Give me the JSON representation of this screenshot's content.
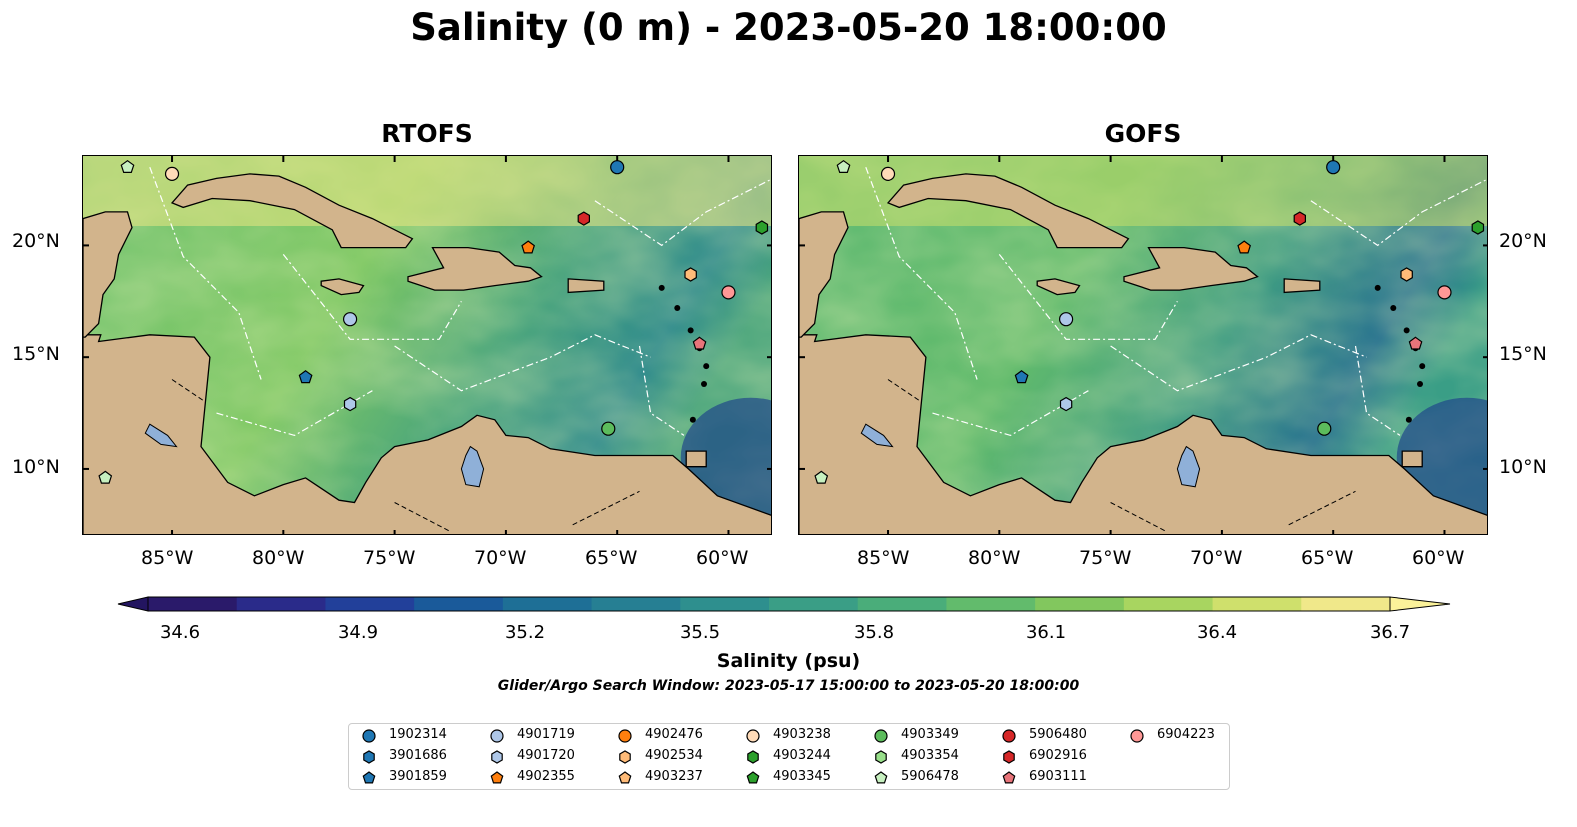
{
  "figure": {
    "title": "Salinity (0 m) - 2023-05-20 18:00:00",
    "colorbar_title": "Salinity (psu)",
    "search_window": "Glider/Argo Search Window: 2023-05-17 15:00:00 to 2023-05-20 18:00:00"
  },
  "panels": [
    {
      "title": "RTOFS"
    },
    {
      "title": "GOFS"
    }
  ],
  "axes": {
    "lon_labels": [
      "85°W",
      "80°W",
      "75°W",
      "70°W",
      "65°W",
      "60°W"
    ],
    "lat_labels": [
      "20°N",
      "15°N",
      "10°N"
    ],
    "lon_values": [
      -85,
      -80,
      -75,
      -70,
      -65,
      -60
    ],
    "lat_values": [
      20,
      15,
      10
    ],
    "lon_range": [
      -89,
      -58
    ],
    "lat_range": [
      7,
      24
    ]
  },
  "colorbar": {
    "min": 34.6,
    "max": 36.7,
    "extend": "both",
    "tick_labels": [
      "34.6",
      "34.9",
      "35.2",
      "35.5",
      "35.8",
      "36.1",
      "36.4",
      "36.7"
    ],
    "colors": [
      "#2a1a6a",
      "#2a2b8a",
      "#22409a",
      "#1a5a9a",
      "#1e6f96",
      "#267f93",
      "#2e8f8e",
      "#3a9e86",
      "#4aad7a",
      "#62bb6c",
      "#82c75e",
      "#a8d560",
      "#cfe06c",
      "#f0e88a"
    ]
  },
  "colors": {
    "land": "#d2b48c",
    "lake": "#8fb0d8"
  },
  "legend": {
    "items": [
      {
        "label": "1902314",
        "color": "#1f77b4",
        "marker": "circle"
      },
      {
        "label": "3901686",
        "color": "#1f77b4",
        "marker": "hexagon"
      },
      {
        "label": "3901859",
        "color": "#1f77b4",
        "marker": "pentagon"
      },
      {
        "label": "4901719",
        "color": "#aec7e8",
        "marker": "circle"
      },
      {
        "label": "4901720",
        "color": "#aec7e8",
        "marker": "hexagon"
      },
      {
        "label": "4902355",
        "color": "#ff7f0e",
        "marker": "pentagon"
      },
      {
        "label": "4902476",
        "color": "#ff7f0e",
        "marker": "circle"
      },
      {
        "label": "4902534",
        "color": "#ffbb78",
        "marker": "hexagon"
      },
      {
        "label": "4903237",
        "color": "#ffbb78",
        "marker": "pentagon"
      },
      {
        "label": "4903238",
        "color": "#ffdbb8",
        "marker": "circle"
      },
      {
        "label": "4903244",
        "color": "#2ca02c",
        "marker": "hexagon"
      },
      {
        "label": "4903345",
        "color": "#2ca02c",
        "marker": "pentagon"
      },
      {
        "label": "4903349",
        "color": "#5cbc5c",
        "marker": "circle"
      },
      {
        "label": "4903354",
        "color": "#98df8a",
        "marker": "hexagon"
      },
      {
        "label": "5906478",
        "color": "#c7f0c0",
        "marker": "pentagon"
      },
      {
        "label": "5906480",
        "color": "#d62728",
        "marker": "circle"
      },
      {
        "label": "6902916",
        "color": "#d62728",
        "marker": "hexagon"
      },
      {
        "label": "6903111",
        "color": "#e8747a",
        "marker": "pentagon"
      },
      {
        "label": "6904223",
        "color": "#ff9896",
        "marker": "circle"
      }
    ]
  },
  "floats": [
    {
      "id": "1902314",
      "lon": -65.0,
      "lat": 23.5
    },
    {
      "id": "3901859",
      "lon": -79.0,
      "lat": 14.1
    },
    {
      "id": "4901719",
      "lon": -77.0,
      "lat": 16.7
    },
    {
      "id": "4901720",
      "lon": -77.0,
      "lat": 12.9
    },
    {
      "id": "4902355",
      "lon": -69.0,
      "lat": 19.9
    },
    {
      "id": "4902534",
      "lon": -61.7,
      "lat": 18.7
    },
    {
      "id": "4903238",
      "lon": -85.0,
      "lat": 23.2
    },
    {
      "id": "4903244",
      "lon": -58.5,
      "lat": 20.8
    },
    {
      "id": "4903349",
      "lon": -65.4,
      "lat": 11.8
    },
    {
      "id": "5906478",
      "lon": -87.0,
      "lat": 23.5
    },
    {
      "id": "5906478",
      "lon": -88.0,
      "lat": 9.6
    },
    {
      "id": "6902916",
      "lon": -66.5,
      "lat": 21.2
    },
    {
      "id": "6903111",
      "lon": -61.3,
      "lat": 15.6
    },
    {
      "id": "6904223",
      "lon": -60.0,
      "lat": 17.9
    }
  ]
}
